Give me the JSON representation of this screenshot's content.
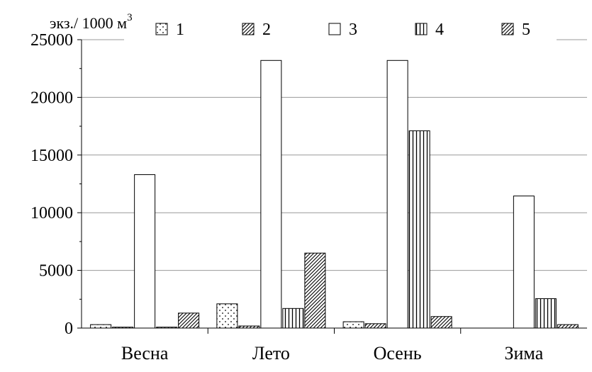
{
  "chart_data": {
    "type": "bar",
    "ylabel": "экз./ 1000 м",
    "ylabel_superscript": "3",
    "ylim": [
      0,
      25000
    ],
    "yticks": [
      0,
      5000,
      10000,
      15000,
      20000,
      25000
    ],
    "grid": true,
    "legend_position": "top",
    "categories": [
      "Весна",
      "Лето",
      "Осень",
      "Зима"
    ],
    "series": [
      {
        "name": "1",
        "pattern": "dots",
        "values": [
          300,
          2100,
          550,
          0
        ]
      },
      {
        "name": "2",
        "pattern": "diagonal",
        "values": [
          80,
          180,
          380,
          0
        ]
      },
      {
        "name": "3",
        "pattern": "none",
        "values": [
          13300,
          23200,
          23200,
          11450
        ]
      },
      {
        "name": "4",
        "pattern": "vertical",
        "values": [
          80,
          1700,
          17100,
          2550
        ]
      },
      {
        "name": "5",
        "pattern": "diagonal",
        "values": [
          1300,
          6500,
          1000,
          300
        ]
      }
    ],
    "colors": {
      "bar_fill": "#ffffff",
      "stroke": "#000000",
      "grid": "#999999"
    }
  }
}
